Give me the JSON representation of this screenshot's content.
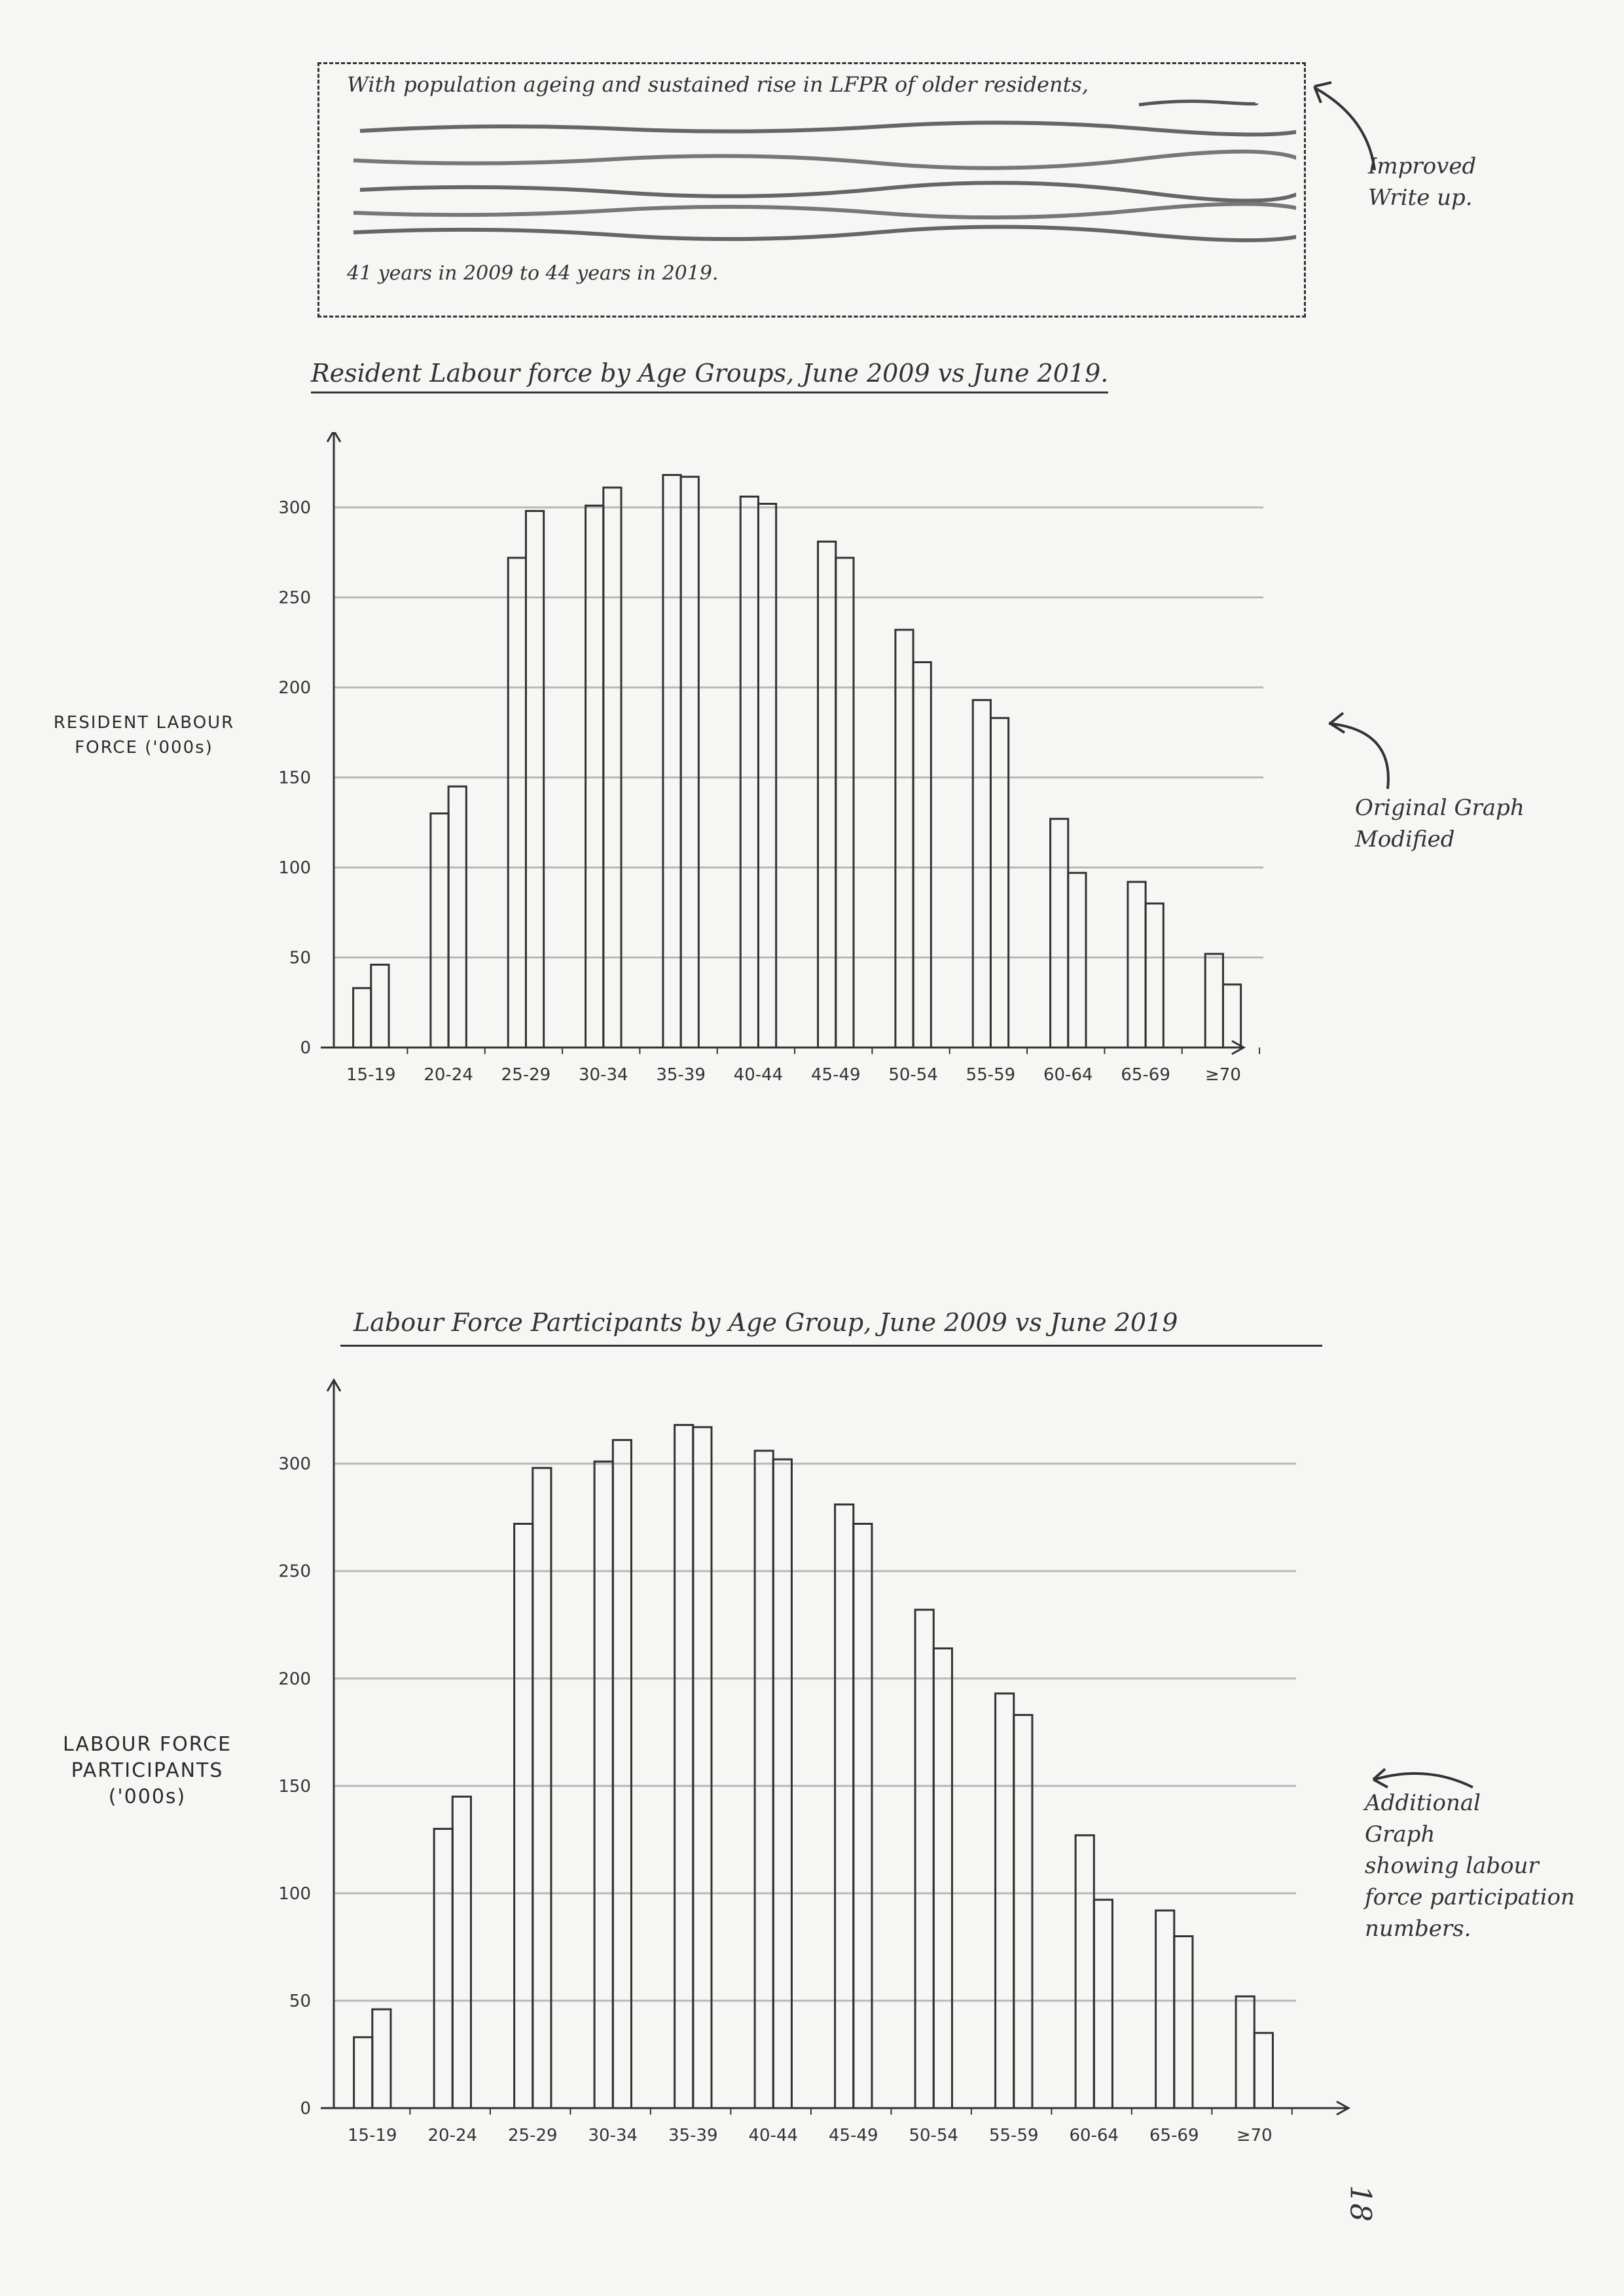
{
  "note": {
    "top_line": "With population ageing and sustained rise in LFPR of older residents,",
    "bottom_line": "41 years in 2009 to 44 years in 2019."
  },
  "side_notes": {
    "improved": "Improved\nWrite up.",
    "original": "Original Graph\nModified",
    "additional": "Additional\nGraph\nshowing labour\nforce participation\nnumbers."
  },
  "page_number": "18",
  "chart_data": [
    {
      "type": "bar",
      "title": "Resident Labour force by Age Groups, June 2009 vs June 2019.",
      "ylabel": "RESIDENT LABOUR\nFORCE ('000s)",
      "xlabel": "",
      "categories": [
        "15-19",
        "20-24",
        "25-29",
        "30-34",
        "35-39",
        "40-44",
        "45-49",
        "50-54",
        "55-59",
        "60-64",
        "65-69",
        "≥70"
      ],
      "series": [
        {
          "values": [
            33,
            130,
            272,
            301,
            318,
            306,
            281,
            232,
            193,
            127,
            92,
            52
          ]
        },
        {
          "values": [
            46,
            145,
            298,
            311,
            317,
            302,
            272,
            214,
            183,
            97,
            80,
            35
          ]
        }
      ],
      "ylim": [
        0,
        320
      ],
      "yticks": [
        0,
        50,
        100,
        150,
        200,
        250,
        300
      ],
      "grid": true
    },
    {
      "type": "bar",
      "title": "Labour Force Participants by Age Group, June 2009 vs June 2019",
      "ylabel": "LABOUR FORCE\nPARTICIPANTS\n('000s)",
      "xlabel": "",
      "categories": [
        "15-19",
        "20-24",
        "25-29",
        "30-34",
        "35-39",
        "40-44",
        "45-49",
        "50-54",
        "55-59",
        "60-64",
        "65-69",
        "≥70"
      ],
      "series": [
        {
          "values": [
            33,
            130,
            272,
            301,
            318,
            306,
            281,
            232,
            193,
            127,
            92,
            52
          ]
        },
        {
          "values": [
            46,
            145,
            298,
            311,
            317,
            302,
            272,
            214,
            183,
            97,
            80,
            35
          ]
        }
      ],
      "ylim": [
        0,
        320
      ],
      "yticks": [
        0,
        50,
        100,
        150,
        200,
        250,
        300
      ],
      "grid": true
    }
  ]
}
